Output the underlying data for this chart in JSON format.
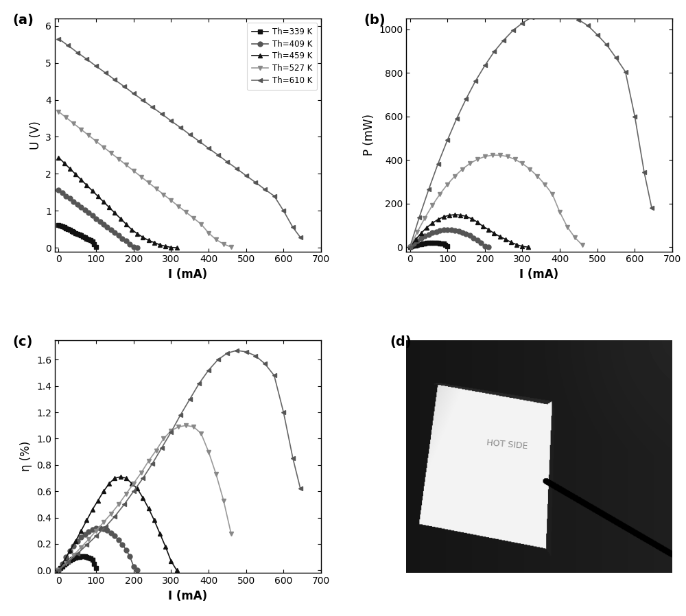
{
  "temps": [
    339,
    409,
    459,
    527,
    610
  ],
  "colors_map": {
    "339": "#111111",
    "409": "#555555",
    "459": "#111111",
    "527": "#888888",
    "610": "#555555"
  },
  "line_colors_map": {
    "339": "#111111",
    "409": "#555555",
    "459": "#111111",
    "527": "#999999",
    "610": "#666666"
  },
  "markers_map": {
    "339": "s",
    "409": "o",
    "459": "^",
    "527": "v",
    "610": "<"
  },
  "ms_map": {
    "339": 4,
    "409": 5,
    "459": 5,
    "527": 5,
    "610": 5
  },
  "panel_labels": [
    "(a)",
    "(b)",
    "(c)",
    "(d)"
  ],
  "a_ylabel": "U (V)",
  "a_xlabel": "I (mA)",
  "b_ylabel": "P (mW)",
  "b_xlabel": "I (mA)",
  "c_ylabel": "η (%)",
  "c_xlabel": "I (mA)",
  "a_ylim": [
    -0.1,
    6.2
  ],
  "b_ylim": [
    -20,
    1050
  ],
  "c_ylim": [
    -0.02,
    1.75
  ],
  "xlim": [
    -10,
    700
  ],
  "a_yticks": [
    0,
    1,
    2,
    3,
    4,
    5,
    6
  ],
  "b_yticks": [
    0,
    200,
    400,
    600,
    800,
    1000
  ],
  "c_yticks": [
    0.0,
    0.2,
    0.4,
    0.6,
    0.8,
    1.0,
    1.2,
    1.4,
    1.6
  ],
  "xticks": [
    0,
    100,
    200,
    300,
    400,
    500,
    600,
    700
  ],
  "series": {
    "339": {
      "I_a": [
        0,
        5,
        10,
        15,
        20,
        25,
        30,
        35,
        40,
        45,
        50,
        55,
        60,
        65,
        70,
        75,
        80,
        85,
        90,
        95,
        100
      ],
      "U_a": [
        0.62,
        0.6,
        0.58,
        0.55,
        0.53,
        0.5,
        0.48,
        0.45,
        0.43,
        0.4,
        0.38,
        0.35,
        0.33,
        0.3,
        0.28,
        0.25,
        0.22,
        0.2,
        0.17,
        0.1,
        0.03
      ],
      "I_b": [
        0,
        5,
        10,
        15,
        20,
        25,
        30,
        35,
        40,
        45,
        50,
        55,
        60,
        65,
        70,
        75,
        80,
        85,
        90,
        95,
        100
      ],
      "P_b": [
        0,
        3,
        5.8,
        8.3,
        10.6,
        12.5,
        14.4,
        15.8,
        17.2,
        18.0,
        19.0,
        19.3,
        19.8,
        19.5,
        19.6,
        18.8,
        17.6,
        17.0,
        15.3,
        9.5,
        3.0
      ],
      "I_c": [
        0,
        5,
        10,
        15,
        20,
        25,
        30,
        35,
        40,
        45,
        50,
        55,
        60,
        65,
        70,
        75,
        80,
        85,
        90,
        95,
        100
      ],
      "eta_c": [
        0,
        0.015,
        0.03,
        0.045,
        0.055,
        0.065,
        0.075,
        0.083,
        0.09,
        0.095,
        0.1,
        0.103,
        0.105,
        0.104,
        0.105,
        0.101,
        0.095,
        0.09,
        0.082,
        0.05,
        0.015
      ]
    },
    "409": {
      "I_a": [
        0,
        10,
        20,
        30,
        40,
        50,
        60,
        70,
        80,
        90,
        100,
        110,
        120,
        130,
        140,
        150,
        160,
        170,
        180,
        190,
        200,
        210
      ],
      "U_a": [
        1.56,
        1.48,
        1.4,
        1.33,
        1.25,
        1.17,
        1.1,
        1.02,
        0.94,
        0.87,
        0.79,
        0.71,
        0.64,
        0.56,
        0.48,
        0.41,
        0.33,
        0.25,
        0.18,
        0.1,
        0.02,
        0.0
      ],
      "I_b": [
        0,
        10,
        20,
        30,
        40,
        50,
        60,
        70,
        80,
        90,
        100,
        110,
        120,
        130,
        140,
        150,
        160,
        170,
        180,
        190,
        200,
        210
      ],
      "P_b": [
        0,
        14.8,
        28,
        40,
        50,
        58.5,
        66,
        71.4,
        75.2,
        78.3,
        79,
        78.1,
        76.8,
        72.8,
        67.2,
        61.5,
        52.8,
        42.5,
        32.4,
        19,
        4,
        0
      ],
      "I_c": [
        0,
        10,
        20,
        30,
        40,
        50,
        60,
        70,
        80,
        90,
        100,
        110,
        120,
        130,
        140,
        150,
        160,
        170,
        180,
        190,
        200,
        210
      ],
      "eta_c": [
        0,
        0.05,
        0.1,
        0.145,
        0.185,
        0.22,
        0.25,
        0.275,
        0.295,
        0.31,
        0.32,
        0.32,
        0.315,
        0.305,
        0.285,
        0.26,
        0.23,
        0.195,
        0.155,
        0.105,
        0.03,
        0
      ]
    },
    "459": {
      "I_a": [
        0,
        15,
        30,
        45,
        60,
        75,
        90,
        105,
        120,
        135,
        150,
        165,
        180,
        195,
        210,
        225,
        240,
        255,
        270,
        285,
        300,
        315
      ],
      "U_a": [
        2.44,
        2.29,
        2.14,
        1.99,
        1.84,
        1.69,
        1.54,
        1.39,
        1.24,
        1.09,
        0.94,
        0.79,
        0.64,
        0.49,
        0.38,
        0.28,
        0.2,
        0.14,
        0.08,
        0.04,
        0.01,
        0.0
      ],
      "I_b": [
        0,
        15,
        30,
        45,
        60,
        75,
        90,
        105,
        120,
        135,
        150,
        165,
        180,
        195,
        210,
        225,
        240,
        255,
        270,
        285,
        300,
        315
      ],
      "P_b": [
        0,
        34,
        64,
        90,
        110,
        127,
        139,
        146,
        149,
        147,
        141,
        130,
        115,
        95,
        80,
        63,
        48,
        36,
        22,
        11,
        3,
        0
      ],
      "I_c": [
        0,
        15,
        30,
        45,
        60,
        75,
        90,
        105,
        120,
        135,
        150,
        165,
        180,
        195,
        210,
        225,
        240,
        255,
        270,
        285,
        300,
        315
      ],
      "eta_c": [
        0,
        0.07,
        0.15,
        0.22,
        0.3,
        0.38,
        0.46,
        0.53,
        0.6,
        0.66,
        0.7,
        0.71,
        0.7,
        0.66,
        0.62,
        0.55,
        0.47,
        0.38,
        0.28,
        0.18,
        0.07,
        0.0
      ]
    },
    "527": {
      "I_a": [
        0,
        20,
        40,
        60,
        80,
        100,
        120,
        140,
        160,
        180,
        200,
        220,
        240,
        260,
        280,
        300,
        320,
        340,
        360,
        380,
        400,
        420,
        440,
        460
      ],
      "U_a": [
        3.68,
        3.52,
        3.36,
        3.2,
        3.04,
        2.88,
        2.72,
        2.56,
        2.4,
        2.24,
        2.08,
        1.92,
        1.76,
        1.6,
        1.44,
        1.28,
        1.12,
        0.96,
        0.8,
        0.64,
        0.4,
        0.22,
        0.1,
        0.02
      ],
      "I_b": [
        0,
        20,
        40,
        60,
        80,
        100,
        120,
        140,
        160,
        180,
        200,
        220,
        240,
        260,
        280,
        300,
        320,
        340,
        360,
        380,
        400,
        420,
        440,
        460
      ],
      "P_b": [
        0,
        70,
        134,
        192,
        243,
        288,
        326,
        358,
        384,
        403,
        416,
        422,
        422,
        416,
        403,
        384,
        358,
        326,
        288,
        243,
        160,
        92,
        44,
        9
      ],
      "I_c": [
        0,
        20,
        40,
        60,
        80,
        100,
        120,
        140,
        160,
        180,
        200,
        220,
        240,
        260,
        280,
        300,
        320,
        340,
        360,
        380,
        400,
        420,
        440,
        460
      ],
      "eta_c": [
        0,
        0.055,
        0.115,
        0.175,
        0.235,
        0.3,
        0.365,
        0.43,
        0.5,
        0.58,
        0.66,
        0.74,
        0.83,
        0.91,
        1.0,
        1.06,
        1.09,
        1.1,
        1.09,
        1.04,
        0.9,
        0.73,
        0.53,
        0.28
      ]
    },
    "610": {
      "I_a": [
        0,
        25,
        50,
        75,
        100,
        125,
        150,
        175,
        200,
        225,
        250,
        275,
        300,
        325,
        350,
        375,
        400,
        425,
        450,
        475,
        500,
        525,
        550,
        575,
        600,
        625,
        645
      ],
      "U_a": [
        5.65,
        5.47,
        5.28,
        5.1,
        4.91,
        4.73,
        4.54,
        4.36,
        4.17,
        3.99,
        3.8,
        3.62,
        3.43,
        3.25,
        3.06,
        2.88,
        2.69,
        2.51,
        2.32,
        2.14,
        1.95,
        1.77,
        1.58,
        1.4,
        1.0,
        0.55,
        0.28
      ],
      "I_b": [
        0,
        25,
        50,
        75,
        100,
        125,
        150,
        175,
        200,
        225,
        250,
        275,
        300,
        325,
        350,
        375,
        400,
        425,
        450,
        475,
        500,
        525,
        550,
        575,
        600,
        625,
        645
      ],
      "P_b": [
        0,
        137,
        264,
        383,
        491,
        591,
        681,
        763,
        834,
        898,
        950,
        995,
        1029,
        1056,
        1071,
        1080,
        1076,
        1067,
        1044,
        1017,
        975,
        929,
        869,
        805,
        600,
        344,
        181
      ],
      "I_c": [
        0,
        25,
        50,
        75,
        100,
        125,
        150,
        175,
        200,
        225,
        250,
        275,
        300,
        325,
        350,
        375,
        400,
        425,
        450,
        475,
        500,
        525,
        550,
        575,
        600,
        625,
        645
      ],
      "eta_c": [
        0,
        0.062,
        0.126,
        0.192,
        0.26,
        0.33,
        0.41,
        0.5,
        0.6,
        0.7,
        0.81,
        0.93,
        1.05,
        1.18,
        1.3,
        1.42,
        1.52,
        1.6,
        1.65,
        1.67,
        1.66,
        1.63,
        1.57,
        1.48,
        1.2,
        0.85,
        0.62
      ]
    }
  },
  "legend_temps": [
    339,
    409,
    459,
    527,
    610
  ],
  "bg_color": "#ffffff"
}
